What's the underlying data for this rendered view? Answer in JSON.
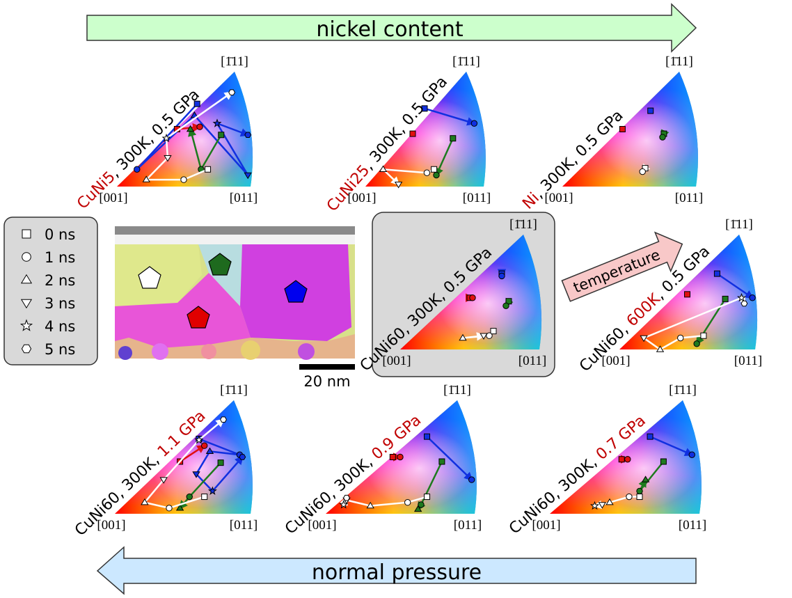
{
  "header": {
    "nickel_arrow": "nickel content",
    "pressure_arrow": "normal pressure",
    "temperature_arrow": "temperature"
  },
  "legend": [
    "0 ns",
    "1 ns",
    "2 ns",
    "3 ns",
    "4 ns",
    "5 ns"
  ],
  "scale_bar": "20 nm",
  "panels": [
    {
      "title_parts": [
        {
          "text": "CuNi5",
          "color": "#c00000"
        },
        {
          "text": ", 300K, 0.5 GPa",
          "color": "#000000"
        }
      ],
      "corners": [
        "[001]",
        "[011]",
        "[1̄11]"
      ]
    },
    {
      "title_parts": [
        {
          "text": "CuNi25",
          "color": "#c00000"
        },
        {
          "text": ", 300K, 0.5 GPa",
          "color": "#000000"
        }
      ],
      "corners": [
        "[001]",
        "[011]",
        "[1̄11]"
      ]
    },
    {
      "title_parts": [
        {
          "text": "Ni",
          "color": "#c00000"
        },
        {
          "text": ", 300K, 0.5 GPa",
          "color": "#000000"
        }
      ],
      "corners": [
        "[001]",
        "[011]",
        "[1̄11]"
      ]
    },
    {
      "title_parts": [
        {
          "text": "CuNi60, 300K, 0.5 GPa",
          "color": "#000000"
        }
      ],
      "corners": [
        "[001]",
        "[011]",
        "[1̄11]"
      ]
    },
    {
      "title_parts": [
        {
          "text": "CuNi60, ",
          "color": "#000000"
        },
        {
          "text": "600K",
          "color": "#c00000"
        },
        {
          "text": ", 0.5 GPa",
          "color": "#000000"
        }
      ],
      "corners": [
        "[001]",
        "[011]",
        "[1̄11]"
      ]
    },
    {
      "title_parts": [
        {
          "text": "CuNi60, 300K, ",
          "color": "#000000"
        },
        {
          "text": "1.1 GPa",
          "color": "#c00000"
        }
      ],
      "corners": [
        "[001]",
        "[011]",
        "[1̄11]"
      ]
    },
    {
      "title_parts": [
        {
          "text": "CuNi60, 300K, ",
          "color": "#000000"
        },
        {
          "text": "0.9 GPa",
          "color": "#c00000"
        }
      ],
      "corners": [
        "[001]",
        "[011]",
        "[1̄11]"
      ]
    },
    {
      "title_parts": [
        {
          "text": "CuNi60, 300K, ",
          "color": "#000000"
        },
        {
          "text": "0.7 GPa",
          "color": "#c00000"
        }
      ],
      "corners": [
        "[001]",
        "[011]",
        "[1̄11]"
      ]
    }
  ]
}
